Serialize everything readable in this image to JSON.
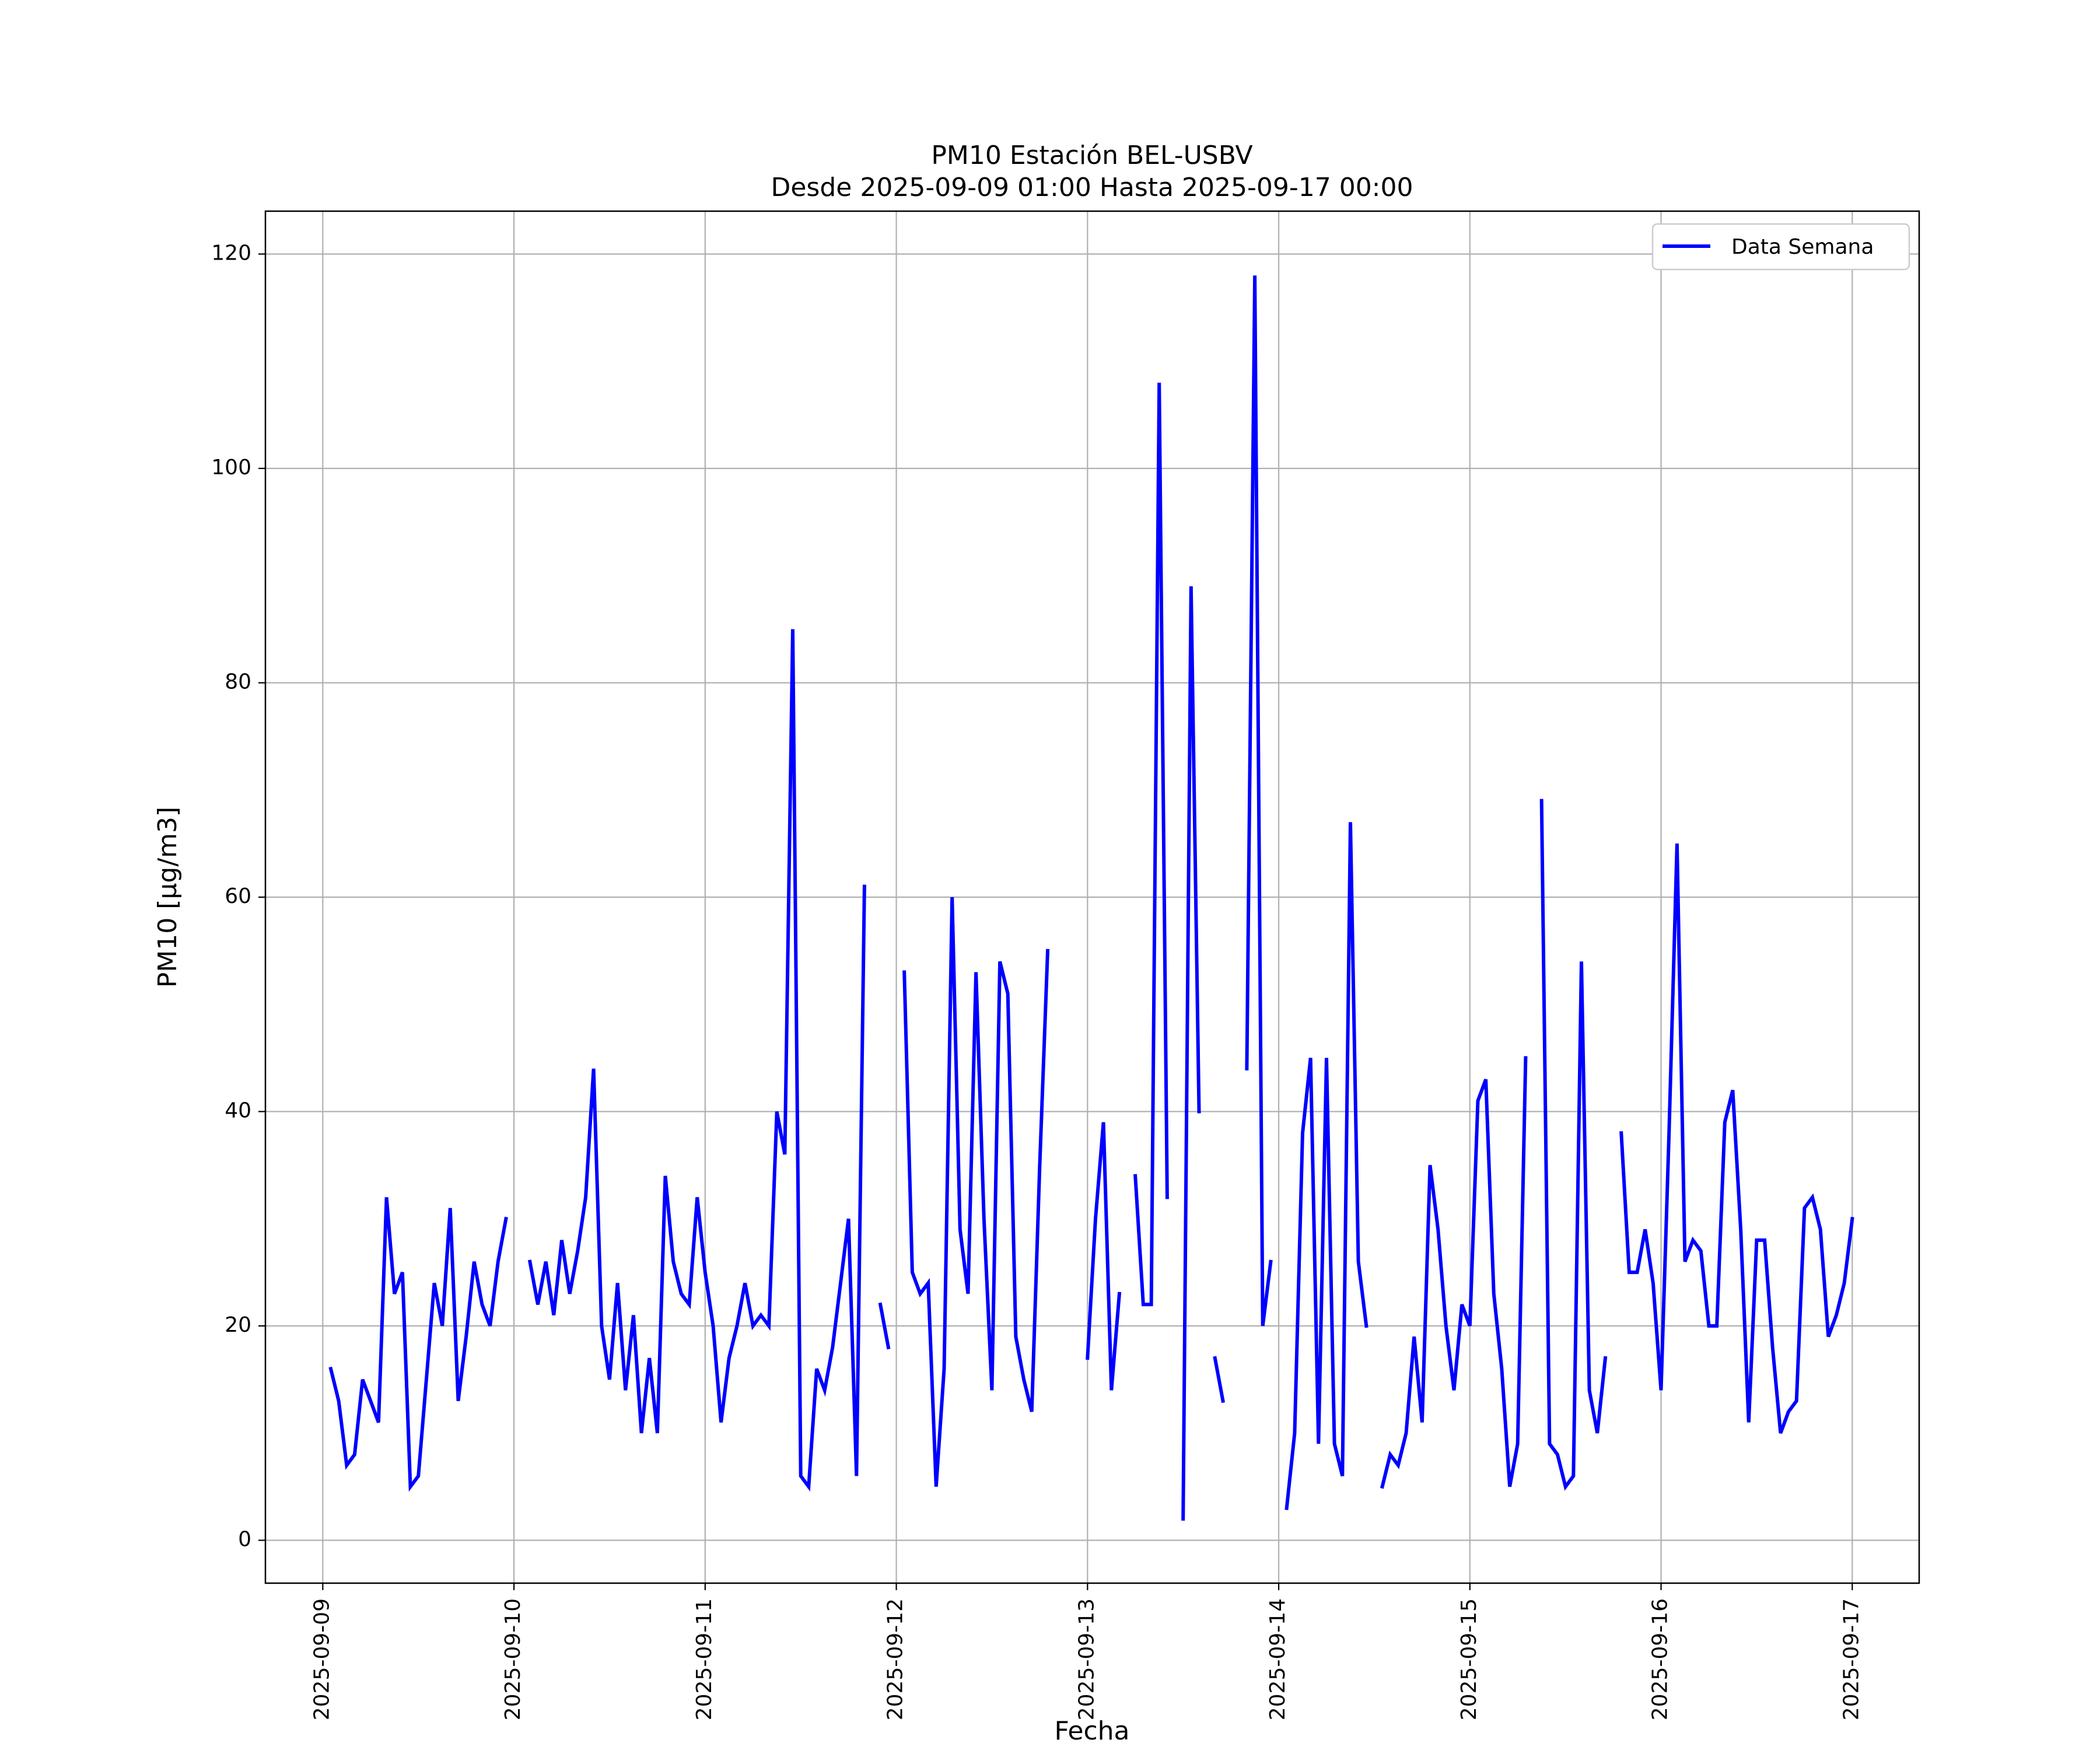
{
  "chart_data": {
    "type": "line",
    "title": "PM10 Estación BEL-USBV",
    "subtitle": "Desde 2025-09-09 01:00 Hasta 2025-09-17 00:00",
    "xlabel": "Fecha",
    "ylabel": "PM10 [μg/m3]",
    "ylim": [
      -4,
      124
    ],
    "xlim": [
      "2025-09-08 16:48",
      "2025-09-17 08:24"
    ],
    "yticks": [
      0,
      20,
      40,
      60,
      80,
      100,
      120
    ],
    "xticks": [
      "2025-09-09",
      "2025-09-10",
      "2025-09-11",
      "2025-09-12",
      "2025-09-13",
      "2025-09-14",
      "2025-09-15",
      "2025-09-16",
      "2025-09-17"
    ],
    "grid": true,
    "legend_position": "top-right",
    "colors": {
      "series": "#0000ff",
      "grid": "#b0b0b0",
      "axes": "#000000"
    },
    "series": [
      {
        "name": "Data Semana",
        "points": [
          [
            "2025-09-09 01:00",
            16
          ],
          [
            "2025-09-09 02:00",
            13
          ],
          [
            "2025-09-09 03:00",
            7
          ],
          [
            "2025-09-09 04:00",
            8
          ],
          [
            "2025-09-09 05:00",
            15
          ],
          [
            "2025-09-09 06:00",
            13
          ],
          [
            "2025-09-09 07:00",
            11
          ],
          [
            "2025-09-09 08:00",
            32
          ],
          [
            "2025-09-09 09:00",
            23
          ],
          [
            "2025-09-09 10:00",
            25
          ],
          [
            "2025-09-09 11:00",
            5
          ],
          [
            "2025-09-09 12:00",
            6
          ],
          [
            "2025-09-09 13:00",
            15
          ],
          [
            "2025-09-09 14:00",
            24
          ],
          [
            "2025-09-09 15:00",
            20
          ],
          [
            "2025-09-09 16:00",
            31
          ],
          [
            "2025-09-09 17:00",
            13
          ],
          [
            "2025-09-09 18:00",
            19
          ],
          [
            "2025-09-09 19:00",
            26
          ],
          [
            "2025-09-09 20:00",
            22
          ],
          [
            "2025-09-09 21:00",
            20
          ],
          [
            "2025-09-09 22:00",
            26
          ],
          [
            "2025-09-09 23:00",
            30
          ],
          [
            "2025-09-10 00:00",
            null
          ],
          [
            "2025-09-10 01:00",
            null
          ],
          [
            "2025-09-10 02:00",
            26
          ],
          [
            "2025-09-10 03:00",
            22
          ],
          [
            "2025-09-10 04:00",
            26
          ],
          [
            "2025-09-10 05:00",
            21
          ],
          [
            "2025-09-10 06:00",
            28
          ],
          [
            "2025-09-10 07:00",
            23
          ],
          [
            "2025-09-10 08:00",
            27
          ],
          [
            "2025-09-10 09:00",
            32
          ],
          [
            "2025-09-10 10:00",
            44
          ],
          [
            "2025-09-10 11:00",
            20
          ],
          [
            "2025-09-10 12:00",
            15
          ],
          [
            "2025-09-10 13:00",
            24
          ],
          [
            "2025-09-10 14:00",
            14
          ],
          [
            "2025-09-10 15:00",
            21
          ],
          [
            "2025-09-10 16:00",
            10
          ],
          [
            "2025-09-10 17:00",
            17
          ],
          [
            "2025-09-10 18:00",
            10
          ],
          [
            "2025-09-10 19:00",
            34
          ],
          [
            "2025-09-10 20:00",
            26
          ],
          [
            "2025-09-10 21:00",
            23
          ],
          [
            "2025-09-10 22:00",
            22
          ],
          [
            "2025-09-10 23:00",
            32
          ],
          [
            "2025-09-11 00:00",
            25
          ],
          [
            "2025-09-11 01:00",
            20
          ],
          [
            "2025-09-11 02:00",
            11
          ],
          [
            "2025-09-11 03:00",
            17
          ],
          [
            "2025-09-11 04:00",
            20
          ],
          [
            "2025-09-11 05:00",
            24
          ],
          [
            "2025-09-11 06:00",
            20
          ],
          [
            "2025-09-11 07:00",
            21
          ],
          [
            "2025-09-11 08:00",
            20
          ],
          [
            "2025-09-11 09:00",
            40
          ],
          [
            "2025-09-11 10:00",
            36
          ],
          [
            "2025-09-11 11:00",
            85
          ],
          [
            "2025-09-11 12:00",
            6
          ],
          [
            "2025-09-11 13:00",
            5
          ],
          [
            "2025-09-11 14:00",
            16
          ],
          [
            "2025-09-11 15:00",
            14
          ],
          [
            "2025-09-11 16:00",
            18
          ],
          [
            "2025-09-11 17:00",
            24
          ],
          [
            "2025-09-11 18:00",
            30
          ],
          [
            "2025-09-11 19:00",
            6
          ],
          [
            "2025-09-11 20:00",
            61
          ],
          [
            "2025-09-11 21:00",
            null
          ],
          [
            "2025-09-11 22:00",
            22
          ],
          [
            "2025-09-11 23:00",
            18
          ],
          [
            "2025-09-12 00:00",
            null
          ],
          [
            "2025-09-12 01:00",
            53
          ],
          [
            "2025-09-12 02:00",
            25
          ],
          [
            "2025-09-12 03:00",
            23
          ],
          [
            "2025-09-12 04:00",
            24
          ],
          [
            "2025-09-12 05:00",
            5
          ],
          [
            "2025-09-12 06:00",
            16
          ],
          [
            "2025-09-12 07:00",
            60
          ],
          [
            "2025-09-12 08:00",
            29
          ],
          [
            "2025-09-12 09:00",
            23
          ],
          [
            "2025-09-12 10:00",
            53
          ],
          [
            "2025-09-12 11:00",
            30
          ],
          [
            "2025-09-12 12:00",
            14
          ],
          [
            "2025-09-12 13:00",
            54
          ],
          [
            "2025-09-12 14:00",
            51
          ],
          [
            "2025-09-12 15:00",
            19
          ],
          [
            "2025-09-12 16:00",
            15
          ],
          [
            "2025-09-12 17:00",
            12
          ],
          [
            "2025-09-12 18:00",
            35
          ],
          [
            "2025-09-12 19:00",
            55
          ],
          [
            "2025-09-12 20:00",
            null
          ],
          [
            "2025-09-12 21:00",
            null
          ],
          [
            "2025-09-12 22:00",
            null
          ],
          [
            "2025-09-12 23:00",
            null
          ],
          [
            "2025-09-13 00:00",
            17
          ],
          [
            "2025-09-13 01:00",
            30
          ],
          [
            "2025-09-13 02:00",
            39
          ],
          [
            "2025-09-13 03:00",
            14
          ],
          [
            "2025-09-13 04:00",
            23
          ],
          [
            "2025-09-13 05:00",
            null
          ],
          [
            "2025-09-13 06:00",
            34
          ],
          [
            "2025-09-13 07:00",
            22
          ],
          [
            "2025-09-13 08:00",
            22
          ],
          [
            "2025-09-13 09:00",
            108
          ],
          [
            "2025-09-13 10:00",
            32
          ],
          [
            "2025-09-13 11:00",
            null
          ],
          [
            "2025-09-13 12:00",
            2
          ],
          [
            "2025-09-13 13:00",
            89
          ],
          [
            "2025-09-13 14:00",
            40
          ],
          [
            "2025-09-13 15:00",
            null
          ],
          [
            "2025-09-13 16:00",
            17
          ],
          [
            "2025-09-13 17:00",
            13
          ],
          [
            "2025-09-13 18:00",
            null
          ],
          [
            "2025-09-13 19:00",
            null
          ],
          [
            "2025-09-13 20:00",
            44
          ],
          [
            "2025-09-13 21:00",
            118
          ],
          [
            "2025-09-13 22:00",
            20
          ],
          [
            "2025-09-13 23:00",
            26
          ],
          [
            "2025-09-14 00:00",
            null
          ],
          [
            "2025-09-14 01:00",
            3
          ],
          [
            "2025-09-14 02:00",
            10
          ],
          [
            "2025-09-14 03:00",
            38
          ],
          [
            "2025-09-14 04:00",
            45
          ],
          [
            "2025-09-14 05:00",
            9
          ],
          [
            "2025-09-14 06:00",
            45
          ],
          [
            "2025-09-14 07:00",
            9
          ],
          [
            "2025-09-14 08:00",
            6
          ],
          [
            "2025-09-14 09:00",
            67
          ],
          [
            "2025-09-14 10:00",
            26
          ],
          [
            "2025-09-14 11:00",
            20
          ],
          [
            "2025-09-14 12:00",
            null
          ],
          [
            "2025-09-14 13:00",
            5
          ],
          [
            "2025-09-14 14:00",
            8
          ],
          [
            "2025-09-14 15:00",
            7
          ],
          [
            "2025-09-14 16:00",
            10
          ],
          [
            "2025-09-14 17:00",
            19
          ],
          [
            "2025-09-14 18:00",
            11
          ],
          [
            "2025-09-14 19:00",
            35
          ],
          [
            "2025-09-14 20:00",
            29
          ],
          [
            "2025-09-14 21:00",
            20
          ],
          [
            "2025-09-14 22:00",
            14
          ],
          [
            "2025-09-14 23:00",
            22
          ],
          [
            "2025-09-15 00:00",
            20
          ],
          [
            "2025-09-15 01:00",
            41
          ],
          [
            "2025-09-15 02:00",
            43
          ],
          [
            "2025-09-15 03:00",
            23
          ],
          [
            "2025-09-15 04:00",
            16
          ],
          [
            "2025-09-15 05:00",
            5
          ],
          [
            "2025-09-15 06:00",
            9
          ],
          [
            "2025-09-15 07:00",
            45
          ],
          [
            "2025-09-15 08:00",
            null
          ],
          [
            "2025-09-15 09:00",
            69
          ],
          [
            "2025-09-15 10:00",
            9
          ],
          [
            "2025-09-15 11:00",
            8
          ],
          [
            "2025-09-15 12:00",
            5
          ],
          [
            "2025-09-15 13:00",
            6
          ],
          [
            "2025-09-15 14:00",
            54
          ],
          [
            "2025-09-15 15:00",
            14
          ],
          [
            "2025-09-15 16:00",
            10
          ],
          [
            "2025-09-15 17:00",
            17
          ],
          [
            "2025-09-15 18:00",
            null
          ],
          [
            "2025-09-15 19:00",
            38
          ],
          [
            "2025-09-15 20:00",
            25
          ],
          [
            "2025-09-15 21:00",
            25
          ],
          [
            "2025-09-15 22:00",
            29
          ],
          [
            "2025-09-15 23:00",
            24
          ],
          [
            "2025-09-16 00:00",
            14
          ],
          [
            "2025-09-16 01:00",
            38
          ],
          [
            "2025-09-16 02:00",
            65
          ],
          [
            "2025-09-16 03:00",
            26
          ],
          [
            "2025-09-16 04:00",
            28
          ],
          [
            "2025-09-16 05:00",
            27
          ],
          [
            "2025-09-16 06:00",
            20
          ],
          [
            "2025-09-16 07:00",
            20
          ],
          [
            "2025-09-16 08:00",
            39
          ],
          [
            "2025-09-16 09:00",
            42
          ],
          [
            "2025-09-16 10:00",
            29
          ],
          [
            "2025-09-16 11:00",
            11
          ],
          [
            "2025-09-16 12:00",
            28
          ],
          [
            "2025-09-16 13:00",
            28
          ],
          [
            "2025-09-16 14:00",
            18
          ],
          [
            "2025-09-16 15:00",
            10
          ],
          [
            "2025-09-16 16:00",
            12
          ],
          [
            "2025-09-16 17:00",
            13
          ],
          [
            "2025-09-16 18:00",
            31
          ],
          [
            "2025-09-16 19:00",
            32
          ],
          [
            "2025-09-16 20:00",
            29
          ],
          [
            "2025-09-16 21:00",
            19
          ],
          [
            "2025-09-16 22:00",
            21
          ],
          [
            "2025-09-16 23:00",
            24
          ],
          [
            "2025-09-17 00:00",
            30
          ]
        ]
      }
    ]
  }
}
